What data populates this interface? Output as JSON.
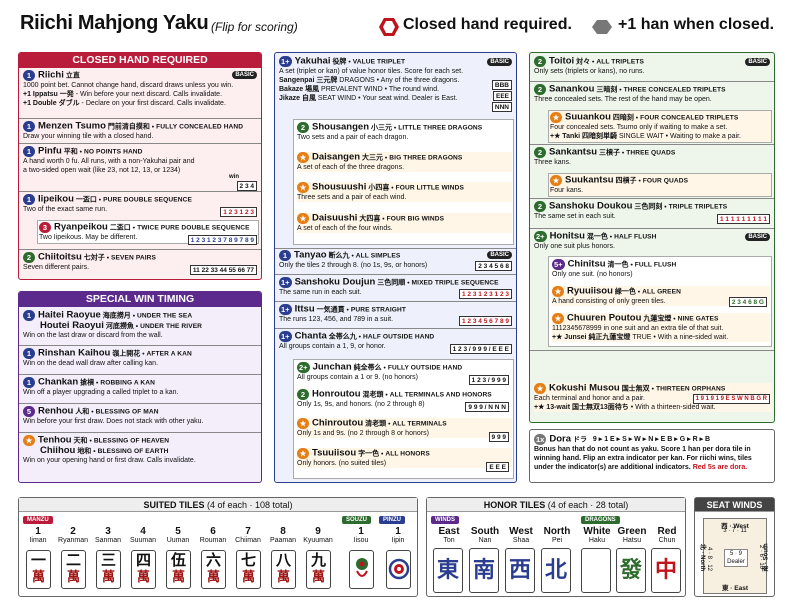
{
  "header": {
    "title": "Riichi Mahjong Yaku",
    "subtitle": "(Flip for scoring)",
    "legend1": "Closed hand required.",
    "legend2": "+1 han when closed."
  },
  "closed": {
    "title": "CLOSED HAND REQUIRED",
    "basic": "BASIC",
    "riichi": {
      "han": "1",
      "name": "Riichi",
      "kanji": "立直",
      "d1": "1000 point bet. Cannot change hand, discard draws unless you win.",
      "d2a": "+1 Ippatsu",
      "d2k": "一発",
      "d2": " - Win before your next discard. Calls invalidate.",
      "d3a": "+1 Double",
      "d3k": "ダブル",
      "d3": " - Declare on your first discard. Calls invalidate."
    },
    "tsumo": {
      "han": "1",
      "name": "Menzen Tsumo",
      "kanji": "門前清自摸和",
      "sub": " • FULLY CONCEALED HAND",
      "d": "Draw your winning tile with a closed hand."
    },
    "pinfu": {
      "han": "1",
      "name": "Pinfu",
      "kanji": "平和",
      "sub": " • NO POINTS HAND",
      "d1": "A hand worth 0 fu. All runs, with a non-Yakuhai pair and",
      "d2": "a two-sided open wait (like 23, not 12, 13, or 1234)",
      "win": "win",
      "tiles": "2 3 4"
    },
    "iipeikou": {
      "han": "1",
      "name": "Iipeikou",
      "kanji": "一盃口",
      "sub": " • PURE DOUBLE SEQUENCE",
      "d": "Two of the exact same run.",
      "tiles": "1 2 3 1 2 3"
    },
    "ryanpeikou": {
      "han": "3",
      "name": "Ryanpeikou",
      "kanji": "二盃口",
      "sub": " • TWICE PURE DOUBLE SEQUENCE",
      "d": "Two Iipeikous. May be different.",
      "tiles": "1 2 3 1 2 3 7 8 9 7 8 9"
    },
    "chiitoitsu": {
      "han": "2",
      "name": "Chiitoitsu",
      "kanji": "七対子",
      "sub": " • SEVEN PAIRS",
      "d": "Seven different pairs.",
      "tiles": "11 22 33 44 55 66 77"
    }
  },
  "special": {
    "title": "SPECIAL WIN TIMING",
    "haitei": {
      "han": "1",
      "name": "Haitei Raoyue",
      "kanji": "海底撈月",
      "sub": " • UNDER THE SEA",
      "name2": "Houtei Raoyui",
      "kanji2": "河底撈魚",
      "sub2": " • UNDER THE RIVER",
      "d": "Win on the last draw or discard from the wall."
    },
    "rinshan": {
      "han": "1",
      "name": "Rinshan Kaihou",
      "kanji": "嶺上開花",
      "sub": " • AFTER A KAN",
      "d": "Win on the dead wall draw after calling kan."
    },
    "chankan": {
      "han": "1",
      "name": "Chankan",
      "kanji": "搶槓",
      "sub": " • ROBBING A KAN",
      "d": "Win off a player upgrading a called triplet to a kan."
    },
    "renhou": {
      "han": "5",
      "name": "Renhou",
      "kanji": "人和",
      "sub": " • BLESSING OF MAN",
      "d": "Win before your first draw. Does not stack with other yaku."
    },
    "tenhou": {
      "han": "★",
      "name": "Tenhou",
      "kanji": "天和",
      "sub": " • BLESSING OF HEAVEN",
      "name2": "Chiihou",
      "kanji2": "地和",
      "sub2": " • BLESSING OF EARTH",
      "d": "Win on your opening hand or first draw. Calls invalidate."
    }
  },
  "mid": {
    "yakuhai": {
      "han": "1+",
      "name": "Yakuhai",
      "kanji": "役牌",
      "sub": " • VALUE TRIPLET",
      "basic": "BASIC",
      "d": "A set (triplet or kan) of value honor tiles. Score for each set.",
      "l1": "Sangenpai",
      "l1k": "三元牌",
      "l1d": " DRAGONS • Any of the three dragons.",
      "l2": "Bakaze",
      "l2k": "場風",
      "l2d": " PREVALENT WIND • The round wind.",
      "l3": "Jikaze",
      "l3k": "自風",
      "l3d": " SEAT WIND • Your seat wind. Dealer is East.",
      "t1": "BBB",
      "t2": "EEE",
      "t3": "NNN"
    },
    "shousangen": {
      "han": "2",
      "name": "Shousangen",
      "kanji": "小三元",
      "sub": " • LITTLE THREE DRAGONS",
      "d": "Two sets and a pair of each dragon."
    },
    "daisangen": {
      "han": "★",
      "name": "Daisangen",
      "kanji": "大三元",
      "sub": " • BIG THREE DRAGONS",
      "d": "A set of each of the three dragons."
    },
    "shousuushi": {
      "han": "★",
      "name": "Shousuushi",
      "kanji": "小四喜",
      "sub": " • FOUR LITTLE WINDS",
      "d": "Three sets and a pair of each wind."
    },
    "daisuushi": {
      "han": "★",
      "name": "Daisuushi",
      "kanji": "大四喜",
      "sub": " • FOUR BIG WINDS",
      "d": "A set of each of the four winds."
    },
    "tanyao": {
      "han": "1",
      "name": "Tanyao",
      "kanji": "断么九",
      "sub": " • ALL SIMPLES",
      "basic": "BASIC",
      "d": "Only the tiles 2 through 8. (no 1s, 9s, or honors)",
      "tiles": "2 3 4 5 6 8"
    },
    "sanshoku": {
      "han": "1+",
      "name": "Sanshoku Doujun",
      "kanji": "三色同順",
      "sub": " • MIXED TRIPLE SEQUENCE",
      "d": "The same run in each suit.",
      "tiles": "1 2 3 1 2 3 1 2 3"
    },
    "ittsu": {
      "han": "1+",
      "name": "Ittsu",
      "kanji": "一気通貫",
      "sub": " • PURE STRAIGHT",
      "d": "The runs 123, 456, and 789 in a suit.",
      "tiles": "1 2 3 4 5 6 7 8 9"
    },
    "chanta": {
      "han": "1+",
      "name": "Chanta",
      "kanji": "全帯么九",
      "sub": " • HALF OUTSIDE HAND",
      "d": "All groups contain a 1, 9, or honor.",
      "tiles": "1 2 3 / 9 9 9 / E E E"
    },
    "junchan": {
      "han": "2+",
      "name": "Junchan",
      "kanji": "純全帯么",
      "sub": " • FULLY OUTSIDE HAND",
      "d": "All groups contain a 1 or 9. (no honors)",
      "tiles": "1 2 3 / 9 9 9"
    },
    "honroutou": {
      "han": "2",
      "name": "Honroutou",
      "kanji": "混老頭",
      "sub": " • ALL TERMINALS AND HONORS",
      "d": "Only 1s, 9s, and honors. (no 2 through 8)",
      "tiles": "9 9 9 / N N N"
    },
    "chinroutou": {
      "han": "★",
      "name": "Chinroutou",
      "kanji": "清老頭",
      "sub": " • ALL TERMINALS",
      "d": "Only 1s and 9s. (no 2 through 8 or honors)",
      "tiles": "9 9 9"
    },
    "tsuuiisou": {
      "han": "★",
      "name": "Tsuuiisou",
      "kanji": "字一色",
      "sub": " • ALL HONORS",
      "d": "Only honors. (no suited tiles)",
      "tiles": "E E E"
    }
  },
  "right": {
    "toitoi": {
      "han": "2",
      "name": "Toitoi",
      "kanji": "対々",
      "sub": " • ALL TRIPLETS",
      "basic": "BASIC",
      "d": "Only sets (triplets or kans), no runs."
    },
    "sanankou": {
      "han": "2",
      "name": "Sanankou",
      "kanji": "三暗刻",
      "sub": " • THREE CONCEALED TRIPLETS",
      "d": "Three concealed sets. The rest of the hand may be open."
    },
    "suuankou": {
      "han": "★",
      "name": "Suuankou",
      "kanji": "四暗刻",
      "sub": " • FOUR CONCEALED TRIPLETS",
      "d1": "Four concealed sets. Tsumo only if waiting to make a set.",
      "d2": "+★ Tanki",
      "d2k": "四暗刻単騎",
      "d2d": " SINGLE WAIT • Waiting to make a pair."
    },
    "sankantsu": {
      "han": "2",
      "name": "Sankantsu",
      "kanji": "三槓子",
      "sub": " • THREE QUADS",
      "d": "Three kans."
    },
    "suukantsu": {
      "han": "★",
      "name": "Suukantsu",
      "kanji": "四槓子",
      "sub": " • FOUR QUADS",
      "d": "Four kans."
    },
    "doukou": {
      "han": "2",
      "name": "Sanshoku Doukou",
      "kanji": "三色同刻",
      "sub": " • TRIPLE TRIPLETS",
      "d": "The same set in each suit.",
      "tiles": "1 1 1 1 1 1 1 1 1"
    },
    "honitsu": {
      "han": "2+",
      "name": "Honitsu",
      "kanji": "混一色",
      "sub": " • HALF FLUSH",
      "basic": "BASIC",
      "d": "Only one suit plus honors."
    },
    "chinitsu": {
      "han": "5+",
      "name": "Chinitsu",
      "kanji": "清一色",
      "sub": " • FULL FLUSH",
      "d": "Only one suit. (no honors)"
    },
    "ryuuiisou": {
      "han": "★",
      "name": "Ryuuiisou",
      "kanji": "緑一色",
      "sub": " • ALL GREEN",
      "d": "A hand consisting of only green tiles.",
      "tiles": "2 3 4 6 8 G"
    },
    "chuuren": {
      "han": "★",
      "name": "Chuuren Poutou",
      "kanji": "九蓮宝燈",
      "sub": " • NINE GATES",
      "d1": "1112345678999 in one suit and an extra tile of that suit.",
      "d2": "+★ Junsei",
      "d2k": "純正九蓮宝燈",
      "d2d": " TRUE • With a nine-sided wait."
    },
    "kokushi": {
      "han": "★",
      "name": "Kokushi Musou",
      "kanji": "国士無双",
      "sub": " • THIRTEEN ORPHANS",
      "d1": "Each terminal and honor and a pair.",
      "d2": "+★ 13-wait",
      "d2k": "国士無双13面待ち",
      "d2d": " • With a thirteen-sided wait.",
      "tiles": "1 9 1 9 1 9 E S W N B G R"
    },
    "dora": {
      "han": "1x",
      "name": "Dora",
      "kanji": "ドラ",
      "d1": "Bonus han that do not count as yaku. Score 1 han per dora tile in",
      "d2": "winning hand. Flip an extra indicator per kan. For riichi wins, tiles",
      "d3": "under the indicator(s) are additional indicators.",
      "d3r": " Red 5s are dora.",
      "seq": "9 ▸ 1   E ▸ S ▸ W ▸ N ▸ E   B ▸ G ▸ R ▸ B"
    }
  },
  "tiles": {
    "suited": {
      "title": "SUITED TILES",
      "sub": "(4 of each · 108 total)",
      "manzu": "MANZU",
      "souzu": "SOUZU",
      "pinzu": "PINZU",
      "man": [
        {
          "n": "1",
          "r": "Iiman",
          "k": "一"
        },
        {
          "n": "2",
          "r": "Ryanman",
          "k": "二"
        },
        {
          "n": "3",
          "r": "Sanman",
          "k": "三"
        },
        {
          "n": "4",
          "r": "Suuman",
          "k": "四"
        },
        {
          "n": "5",
          "r": "Uuman",
          "k": "伍"
        },
        {
          "n": "6",
          "r": "Rouman",
          "k": "六"
        },
        {
          "n": "7",
          "r": "Chiiman",
          "k": "七"
        },
        {
          "n": "8",
          "r": "Paaman",
          "k": "八"
        },
        {
          "n": "9",
          "r": "Kyuuman",
          "k": "九"
        }
      ],
      "sou": {
        "n": "1",
        "r": "Iisou"
      },
      "pin": {
        "n": "1",
        "r": "Iipin"
      },
      "wan": "萬"
    },
    "honor": {
      "title": "HONOR TILES",
      "sub": "(4 of each · 28 total)",
      "winds": "WINDS",
      "dragons": "DRAGONS",
      "w": [
        {
          "n": "East",
          "r": "Ton",
          "k": "東"
        },
        {
          "n": "South",
          "r": "Nan",
          "k": "南"
        },
        {
          "n": "West",
          "r": "Shaa",
          "k": "西"
        },
        {
          "n": "North",
          "r": "Pei",
          "k": "北"
        }
      ],
      "d": [
        {
          "n": "White",
          "r": "Haku",
          "k": ""
        },
        {
          "n": "Green",
          "r": "Hatsu",
          "k": "發"
        },
        {
          "n": "Red",
          "r": "Chun",
          "k": "中"
        }
      ]
    },
    "seat": {
      "title": "SEAT WINDS",
      "west": "西 · West",
      "west_n": "3 · 7 · 11",
      "south": "南 · South",
      "south_n": "2 · 6 · 10",
      "north": "北 · North",
      "north_n": "4 · 8 · 12",
      "east": "東 · East",
      "east_n": "5 · 9",
      "dealer": "Dealer"
    }
  },
  "colors": {
    "closed": "#b81c3a",
    "special": "#5b2a8c",
    "mid": "#2a3d8f",
    "right": "#2e6b2e",
    "orange": "#e67e16",
    "red": "#c0141c"
  }
}
